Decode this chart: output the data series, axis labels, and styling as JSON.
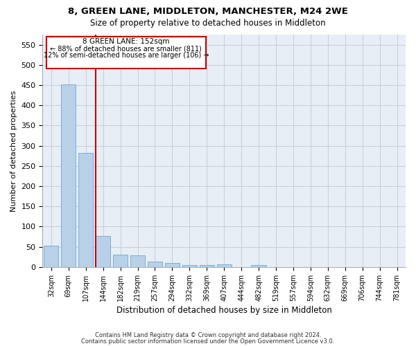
{
  "title1": "8, GREEN LANE, MIDDLETON, MANCHESTER, M24 2WE",
  "title2": "Size of property relative to detached houses in Middleton",
  "xlabel": "Distribution of detached houses by size in Middleton",
  "ylabel": "Number of detached properties",
  "categories": [
    "32sqm",
    "69sqm",
    "107sqm",
    "144sqm",
    "182sqm",
    "219sqm",
    "257sqm",
    "294sqm",
    "332sqm",
    "369sqm",
    "407sqm",
    "444sqm",
    "482sqm",
    "519sqm",
    "557sqm",
    "594sqm",
    "632sqm",
    "669sqm",
    "706sqm",
    "744sqm",
    "781sqm"
  ],
  "values": [
    52,
    452,
    283,
    77,
    30,
    28,
    13,
    10,
    5,
    5,
    6,
    0,
    5,
    0,
    0,
    0,
    0,
    0,
    0,
    0,
    0
  ],
  "bar_color": "#b8d0e8",
  "bar_edge_color": "#6aaad4",
  "subject_label": "8 GREEN LANE: 152sqm",
  "subject_line1": "← 88% of detached houses are smaller (811)",
  "subject_line2": "12% of semi-detached houses are larger (106) →",
  "annotation_box_color": "#ffffff",
  "annotation_box_edge_color": "#cc0000",
  "vline_color": "#cc0000",
  "grid_color": "#c8d0dc",
  "ylim": [
    0,
    575
  ],
  "yticks": [
    0,
    50,
    100,
    150,
    200,
    250,
    300,
    350,
    400,
    450,
    500,
    550
  ],
  "footer1": "Contains HM Land Registry data © Crown copyright and database right 2024.",
  "footer2": "Contains public sector information licensed under the Open Government Licence v3.0.",
  "bg_color": "#ffffff",
  "plot_bg_color": "#e8eef5"
}
